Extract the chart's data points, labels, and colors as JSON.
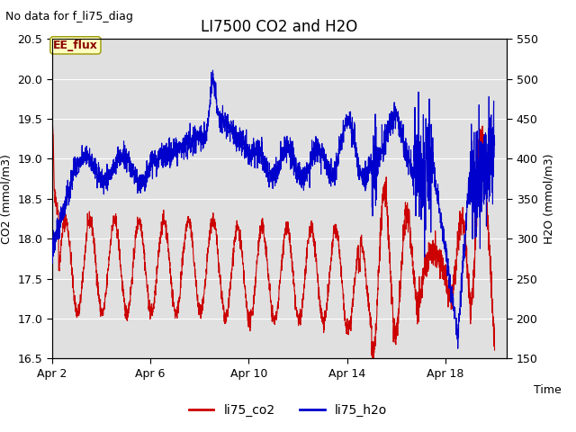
{
  "title": "LI7500 CO2 and H2O",
  "no_data_text": "No data for f_li75_diag",
  "xlabel": "Time",
  "ylabel_left": "CO2 (mmol/m3)",
  "ylabel_right": "H2O (mmol/m3)",
  "annotation_text": "EE_flux",
  "ylim_left": [
    16.5,
    20.5
  ],
  "ylim_right": [
    150,
    550
  ],
  "yticks_left": [
    16.5,
    17.0,
    17.5,
    18.0,
    18.5,
    19.0,
    19.5,
    20.0,
    20.5
  ],
  "yticks_right": [
    150,
    200,
    250,
    300,
    350,
    400,
    450,
    500,
    550
  ],
  "xtick_labels": [
    "Apr 2",
    "Apr 6",
    "Apr 10",
    "Apr 14",
    "Apr 18"
  ],
  "xtick_positions": [
    1,
    5,
    9,
    13,
    17
  ],
  "color_co2": "#cc0000",
  "color_h2o": "#0000cc",
  "legend_labels": [
    "li75_co2",
    "li75_h2o"
  ],
  "background_color": "#e0e0e0",
  "fig_background": "#ffffff",
  "title_fontsize": 12,
  "axis_label_fontsize": 9,
  "tick_label_fontsize": 9,
  "no_data_fontsize": 9,
  "annotation_fontsize": 9,
  "seed": 42
}
